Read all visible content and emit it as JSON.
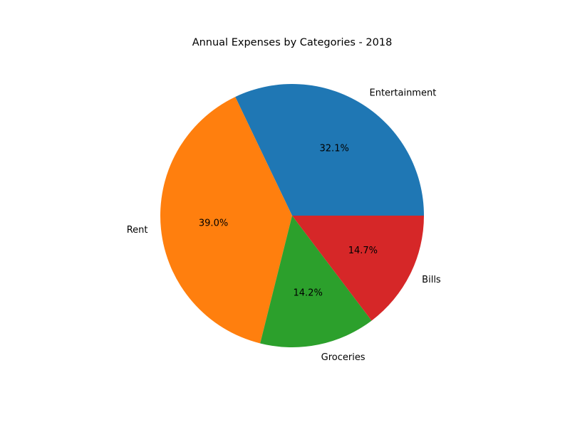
{
  "chart_data": {
    "type": "pie",
    "title": "Annual Expenses by Categories - 2018",
    "slices": [
      {
        "label": "Entertainment",
        "value": 32.1,
        "pct_label": "32.1%",
        "color": "#1f77b4"
      },
      {
        "label": "Rent",
        "value": 39.0,
        "pct_label": "39.0%",
        "color": "#ff7f0e"
      },
      {
        "label": "Groceries",
        "value": 14.2,
        "pct_label": "14.2%",
        "color": "#2ca02c"
      },
      {
        "label": "Bills",
        "value": 14.7,
        "pct_label": "14.7%",
        "color": "#d62728"
      }
    ],
    "start_angle_deg": 0,
    "direction": "counterclockwise",
    "legend": "none"
  }
}
